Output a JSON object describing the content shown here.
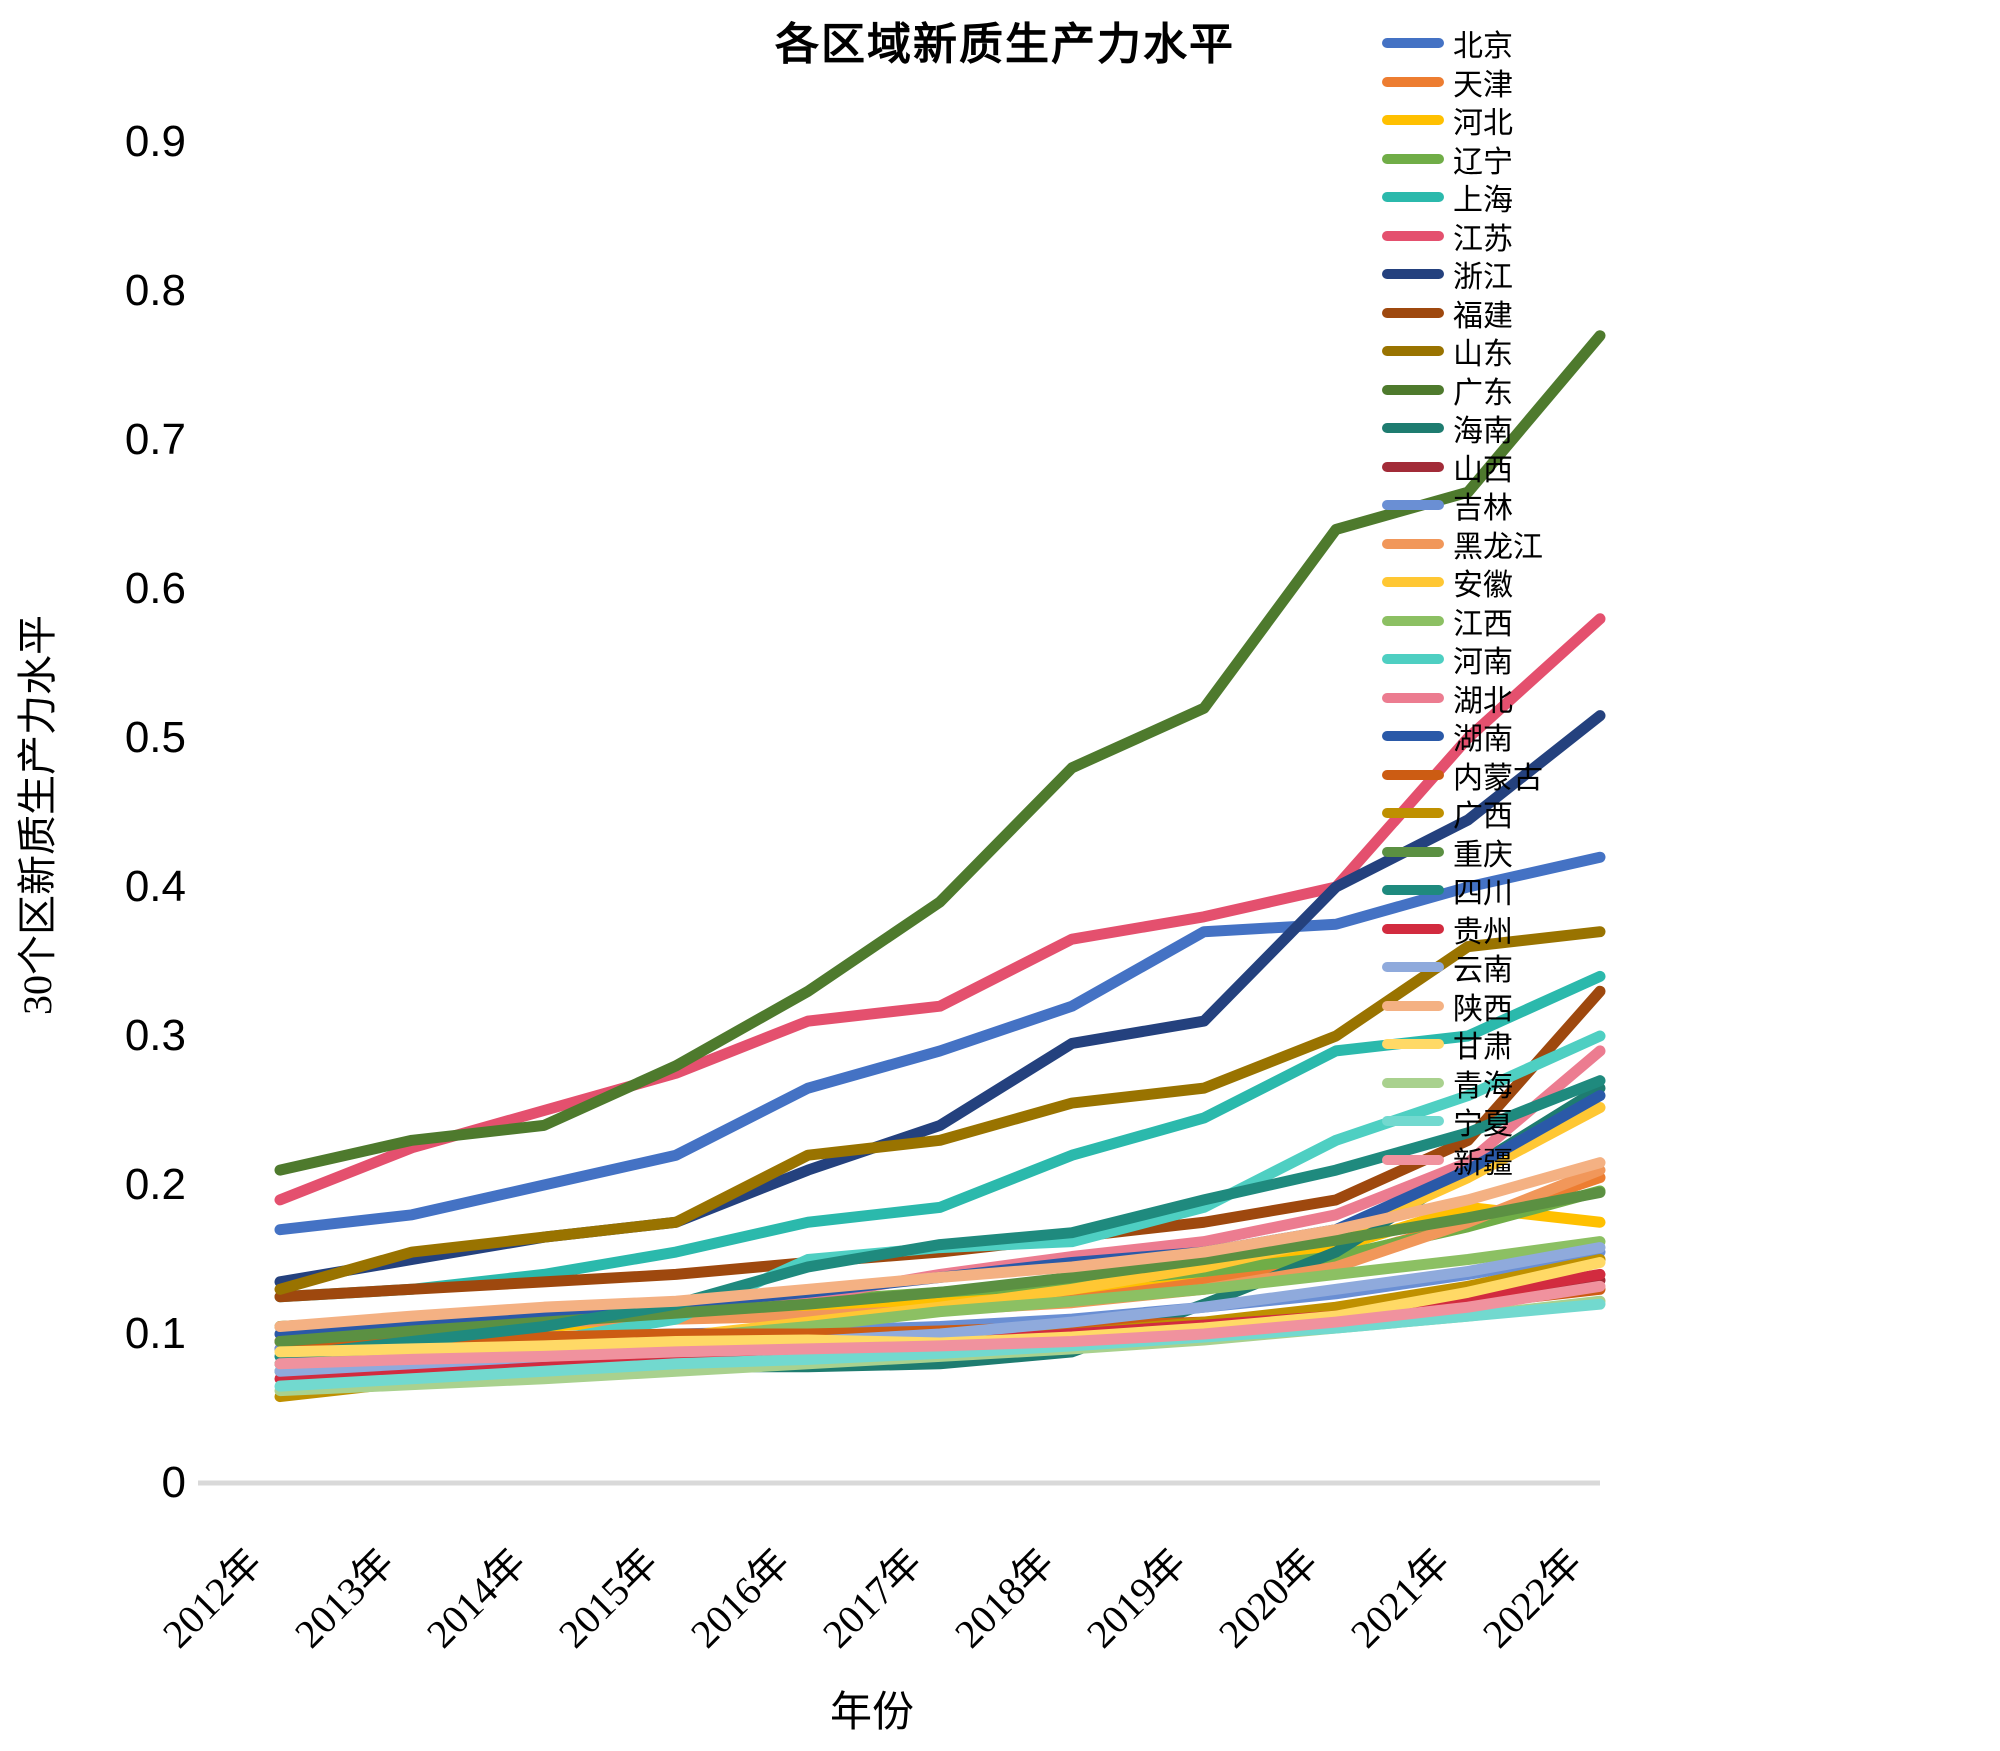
{
  "title": "各区域新质生产力水平",
  "x_axis_title": "年份",
  "y_axis_title": "30个区新质生产力水平",
  "axis_line_color": "#d9d9d9",
  "chart_data": {
    "type": "line",
    "title": "各区域新质生产力水平",
    "xlabel": "年份",
    "ylabel": "30个区新质生产力水平",
    "categories": [
      "2012年",
      "2013年",
      "2014年",
      "2015年",
      "2016年",
      "2017年",
      "2018年",
      "2019年",
      "2020年",
      "2021年",
      "2022年"
    ],
    "ylim": [
      0,
      0.9
    ],
    "yticks": [
      "0",
      "0.1",
      "0.2",
      "0.3",
      "0.4",
      "0.5",
      "0.6",
      "0.7",
      "0.8",
      "0.9"
    ],
    "grid": false,
    "legend_position": "right",
    "series": [
      {
        "name": "北京",
        "color": "#4472c4",
        "values": [
          0.17,
          0.18,
          0.2,
          0.22,
          0.265,
          0.29,
          0.32,
          0.37,
          0.375,
          0.4,
          0.42
        ]
      },
      {
        "name": "天津",
        "color": "#ed7d31",
        "values": [
          0.105,
          0.11,
          0.112,
          0.115,
          0.118,
          0.122,
          0.127,
          0.135,
          0.15,
          0.175,
          0.205
        ]
      },
      {
        "name": "河北",
        "color": "#ffc000",
        "values": [
          0.095,
          0.1,
          0.105,
          0.11,
          0.116,
          0.122,
          0.13,
          0.142,
          0.158,
          0.185,
          0.175
        ]
      },
      {
        "name": "辽宁",
        "color": "#70ad47",
        "values": [
          0.105,
          0.11,
          0.113,
          0.117,
          0.122,
          0.128,
          0.134,
          0.142,
          0.152,
          0.172,
          0.196
        ]
      },
      {
        "name": "上海",
        "color": "#2bb9ac",
        "values": [
          0.125,
          0.13,
          0.14,
          0.155,
          0.175,
          0.185,
          0.22,
          0.245,
          0.29,
          0.3,
          0.34
        ]
      },
      {
        "name": "江苏",
        "color": "#e4506e",
        "values": [
          0.19,
          0.225,
          0.25,
          0.275,
          0.31,
          0.32,
          0.365,
          0.38,
          0.4,
          0.5,
          0.58
        ]
      },
      {
        "name": "浙江",
        "color": "#24417e",
        "values": [
          0.135,
          0.15,
          0.165,
          0.175,
          0.21,
          0.24,
          0.295,
          0.31,
          0.4,
          0.445,
          0.515
        ]
      },
      {
        "name": "福建",
        "color": "#9e480e",
        "values": [
          0.125,
          0.13,
          0.135,
          0.14,
          0.148,
          0.155,
          0.165,
          0.175,
          0.19,
          0.23,
          0.33
        ]
      },
      {
        "name": "山东",
        "color": "#997300",
        "values": [
          0.13,
          0.155,
          0.165,
          0.175,
          0.22,
          0.23,
          0.255,
          0.265,
          0.3,
          0.36,
          0.37
        ]
      },
      {
        "name": "广东",
        "color": "#4e7a2d",
        "values": [
          0.21,
          0.23,
          0.24,
          0.28,
          0.33,
          0.39,
          0.48,
          0.52,
          0.64,
          0.665,
          0.77
        ]
      },
      {
        "name": "海南",
        "color": "#1e7c70",
        "values": [
          0.08,
          0.082,
          0.085,
          0.078,
          0.078,
          0.08,
          0.088,
          0.12,
          0.155,
          0.21,
          0.265
        ]
      },
      {
        "name": "山西",
        "color": "#a22b38",
        "values": [
          0.09,
          0.086,
          0.085,
          0.088,
          0.092,
          0.096,
          0.1,
          0.105,
          0.112,
          0.122,
          0.136
        ]
      },
      {
        "name": "吉林",
        "color": "#6a8fd4",
        "values": [
          0.09,
          0.095,
          0.098,
          0.1,
          0.102,
          0.105,
          0.11,
          0.118,
          0.127,
          0.14,
          0.155
        ]
      },
      {
        "name": "黑龙江",
        "color": "#f1975a",
        "values": [
          0.1,
          0.105,
          0.108,
          0.11,
          0.112,
          0.116,
          0.121,
          0.13,
          0.145,
          0.175,
          0.21
        ]
      },
      {
        "name": "安徽",
        "color": "#ffc733",
        "values": [
          0.075,
          0.082,
          0.09,
          0.098,
          0.108,
          0.118,
          0.13,
          0.145,
          0.165,
          0.205,
          0.252
        ]
      },
      {
        "name": "江西",
        "color": "#8cc063",
        "values": [
          0.08,
          0.085,
          0.09,
          0.097,
          0.105,
          0.115,
          0.122,
          0.13,
          0.14,
          0.15,
          0.162
        ]
      },
      {
        "name": "河南",
        "color": "#4ecfc2",
        "values": [
          0.075,
          0.085,
          0.095,
          0.11,
          0.15,
          0.158,
          0.162,
          0.185,
          0.23,
          0.26,
          0.3
        ]
      },
      {
        "name": "湖北",
        "color": "#ec7c90",
        "values": [
          0.095,
          0.1,
          0.108,
          0.115,
          0.125,
          0.14,
          0.152,
          0.162,
          0.18,
          0.215,
          0.29
        ]
      },
      {
        "name": "湖南",
        "color": "#2a59a8",
        "values": [
          0.1,
          0.107,
          0.113,
          0.12,
          0.128,
          0.138,
          0.148,
          0.155,
          0.17,
          0.21,
          0.26
        ]
      },
      {
        "name": "内蒙古",
        "color": "#cc5c13",
        "values": [
          0.095,
          0.096,
          0.098,
          0.1,
          0.1,
          0.102,
          0.105,
          0.108,
          0.112,
          0.12,
          0.13
        ]
      },
      {
        "name": "广西",
        "color": "#bf9000",
        "values": [
          0.058,
          0.068,
          0.078,
          0.088,
          0.092,
          0.096,
          0.1,
          0.108,
          0.118,
          0.132,
          0.15
        ]
      },
      {
        "name": "重庆",
        "color": "#5b9042",
        "values": [
          0.095,
          0.102,
          0.108,
          0.114,
          0.12,
          0.128,
          0.138,
          0.15,
          0.163,
          0.178,
          0.195
        ]
      },
      {
        "name": "四川",
        "color": "#1f8a7e",
        "values": [
          0.085,
          0.095,
          0.105,
          0.12,
          0.145,
          0.16,
          0.168,
          0.19,
          0.21,
          0.235,
          0.27
        ]
      },
      {
        "name": "贵州",
        "color": "#d22b3f",
        "values": [
          0.07,
          0.074,
          0.078,
          0.082,
          0.088,
          0.094,
          0.1,
          0.106,
          0.112,
          0.125,
          0.14
        ]
      },
      {
        "name": "云南",
        "color": "#8faadc",
        "values": [
          0.075,
          0.08,
          0.085,
          0.09,
          0.095,
          0.1,
          0.108,
          0.118,
          0.13,
          0.142,
          0.158
        ]
      },
      {
        "name": "陕西",
        "color": "#f4b183",
        "values": [
          0.105,
          0.112,
          0.118,
          0.122,
          0.13,
          0.138,
          0.145,
          0.155,
          0.17,
          0.19,
          0.215
        ]
      },
      {
        "name": "甘肃",
        "color": "#ffd966",
        "values": [
          0.088,
          0.09,
          0.092,
          0.095,
          0.096,
          0.094,
          0.098,
          0.104,
          0.112,
          0.128,
          0.148
        ]
      },
      {
        "name": "青海",
        "color": "#a9d18e",
        "values": [
          0.062,
          0.066,
          0.07,
          0.075,
          0.08,
          0.085,
          0.09,
          0.096,
          0.104,
          0.112,
          0.122
        ]
      },
      {
        "name": "宁夏",
        "color": "#72d9cf",
        "values": [
          0.065,
          0.07,
          0.075,
          0.08,
          0.083,
          0.087,
          0.092,
          0.098,
          0.104,
          0.112,
          0.12
        ]
      },
      {
        "name": "新疆",
        "color": "#f0929e",
        "values": [
          0.08,
          0.083,
          0.085,
          0.088,
          0.09,
          0.092,
          0.095,
          0.1,
          0.108,
          0.118,
          0.132
        ]
      }
    ]
  }
}
